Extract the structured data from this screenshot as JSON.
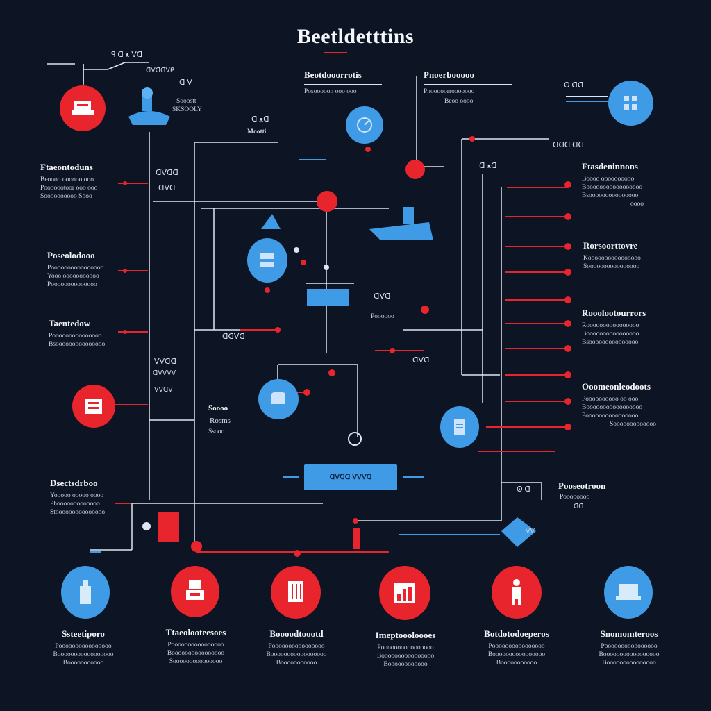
{
  "title": "Beetldetttins",
  "colors": {
    "background": "#0d1424",
    "red": "#e8242c",
    "blue": "#3f9be6",
    "line_white": "#dfe6f2",
    "line_red": "#e8242c",
    "line_blue": "#3f9be6"
  },
  "top_labels": {
    "topleft_a": "ꟼ ᗡ ᴥ ᐯᗡ",
    "topleft_b": "ᗡᐯᗡᗡᐯᑭ",
    "cluster_a": "ᗡ ᐯ",
    "cluster_b": "Sooostt",
    "cluster_c": "SKSOOLY",
    "center_a": "Beotdooorrotis",
    "center_a_sub": "Posooooon  ooo ooo",
    "center_b": "Pnoerbooooo",
    "center_b_sub1": "Pnooooorrooooooo",
    "center_b_sub2": "Beoo oooo",
    "right_a": "Ꙩ ᗡᗡ",
    "mid_a": "ᗡ ᴥᗡ",
    "mid_b": "Mootti",
    "mid_c": "ᗡ ᴥᗡ",
    "mid_d": "ᗡᗡᗡ ᗡᗡ"
  },
  "left_blocks": [
    {
      "heading": "Ftaeontoduns",
      "lines": [
        "Beoooo  oooooo  ooo",
        "Pooooootoor  ooo  ooo",
        "Soooooooooo  Sooo"
      ]
    },
    {
      "heading": "Poseolodooo",
      "lines": [
        "Poooooooooooooooo",
        "Yooo  ooooooooooo",
        "Poooooooooooooo"
      ]
    },
    {
      "heading": "Taentedow",
      "lines": [
        "Pooooooooooooooo",
        "Bsooooooooooooooo"
      ]
    },
    {
      "heading": "Dsectsdrboo",
      "lines": [
        "Yooooo  ooooo  oooo",
        "Phooooooooooooo",
        "Stooooooooooooooo"
      ]
    }
  ],
  "right_blocks": [
    {
      "heading": "Ftasdeninnons",
      "lines": [
        "Boooo  oooooooooo",
        "Booooooooooooooooo",
        "Bsooooooooooooooo",
        "oooo"
      ]
    },
    {
      "heading": "Rorsoorttovre",
      "lines": [
        "Koooooooooooooooo",
        "Soooooooooooooooo"
      ]
    },
    {
      "heading": "Rooolootourrors",
      "lines": [
        "Roooooooooooooooo",
        "Boooooooooooooooo",
        "Bsooooooooooooooo"
      ]
    },
    {
      "heading": "Ooomeonleodoots",
      "lines": [
        "Poooooooooo  oo  ooo",
        "Booooooooooooooooo",
        "Poooooooooooooooo",
        "Sooooooooooooo"
      ]
    }
  ],
  "inner_labels": {
    "l1a": "ᗡᐯᗡᗡ",
    "l1b": "ᗡᐯᗡ",
    "l2a": "ᐯᐯᗡᗡ",
    "l2b": "ᗡᐯᐯᐯᐯ",
    "l2c": "ᐯᐯᗡᐯ",
    "l3": "ᗡᗡᐯᗡ",
    "m1a": "ᗡᐯᗡ",
    "m1b": "Poooooo",
    "m2": "ᗡᐯᗡ",
    "m3": "Ꙩ ᗡ",
    "m4a": "Soooo",
    "m4b": "Rosms",
    "m4c": "Ssooo",
    "br_a": "Pooseotroon",
    "br_b": "Poooooooo",
    "br_c": "ᗡᗡ",
    "br_d": "ᐯᐯ"
  },
  "pill_label": "ᗡᐯᗡᗡ ᐯᐯᐯᗡ",
  "bottom_items": [
    {
      "heading": "Ssteetiporo",
      "lines": [
        "Poooooooooooooooo",
        "Booooooooooooooooo",
        "Booooooooooo"
      ],
      "color": "blue",
      "icon": "bottle-icon"
    },
    {
      "heading": "Ttaeolooteesoes",
      "lines": [
        "Poooooooooooooooo",
        "Boooooooooooooooo",
        "Sooooooooooooooo"
      ],
      "color": "red",
      "icon": "machine-icon"
    },
    {
      "heading": "Boooodtoootd",
      "lines": [
        "Poooooooooooooooo",
        "Booooooooooooooooo",
        "Booooooooooo"
      ],
      "color": "red",
      "icon": "box-icon"
    },
    {
      "heading": "Imeptoooloooes",
      "lines": [
        "Poooooooooooooooo",
        "Boooooooooooooooo",
        "Boooooooooooo"
      ],
      "color": "red",
      "icon": "chart-icon"
    },
    {
      "heading": "Botdotodoeperos",
      "lines": [
        "Poooooooooooooooo",
        "Boooooooooooooooo",
        "Booooooooooo"
      ],
      "color": "red",
      "icon": "person-icon"
    },
    {
      "heading": "Snomomteroos",
      "lines": [
        "Poooooooooooooooo",
        "Booooooooooooooooo",
        "Booooooooooooooo"
      ],
      "color": "blue",
      "icon": "laptop-icon"
    }
  ]
}
